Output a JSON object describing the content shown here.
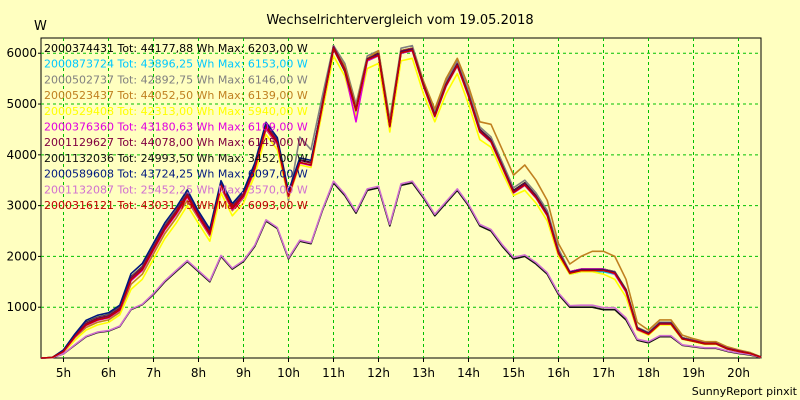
{
  "chart_data": {
    "type": "line",
    "title": "Wechselrichtervergleich vom 19.05.2018",
    "ylabel": "W",
    "footer": "SunnyReport pinxit",
    "xlim": [
      4.5,
      20.5
    ],
    "ylim": [
      0,
      6300
    ],
    "yticks": [
      1000,
      2000,
      3000,
      4000,
      5000,
      6000
    ],
    "xticks": [
      {
        "x": 5,
        "label": "5h"
      },
      {
        "x": 6,
        "label": "6h"
      },
      {
        "x": 7,
        "label": "7h"
      },
      {
        "x": 8,
        "label": "8h"
      },
      {
        "x": 9,
        "label": "9h"
      },
      {
        "x": 10,
        "label": "10h"
      },
      {
        "x": 11,
        "label": "11h"
      },
      {
        "x": 12,
        "label": "12h"
      },
      {
        "x": 13,
        "label": "13h"
      },
      {
        "x": 14,
        "label": "14h"
      },
      {
        "x": 15,
        "label": "15h"
      },
      {
        "x": 16,
        "label": "16h"
      },
      {
        "x": 17,
        "label": "17h"
      },
      {
        "x": 18,
        "label": "18h"
      },
      {
        "x": 19,
        "label": "19h"
      },
      {
        "x": 20,
        "label": "20h"
      }
    ],
    "grid": true,
    "legend_position": "top-left",
    "x": [
      4.5,
      4.75,
      5.0,
      5.25,
      5.5,
      5.75,
      6.0,
      6.25,
      6.5,
      6.75,
      7.0,
      7.25,
      7.5,
      7.75,
      8.0,
      8.25,
      8.5,
      8.75,
      9.0,
      9.25,
      9.5,
      9.75,
      10.0,
      10.25,
      10.5,
      10.75,
      11.0,
      11.25,
      11.5,
      11.75,
      12.0,
      12.25,
      12.5,
      12.75,
      13.0,
      13.25,
      13.5,
      13.75,
      14.0,
      14.25,
      14.5,
      14.75,
      15.0,
      15.25,
      15.5,
      15.75,
      16.0,
      16.25,
      16.5,
      16.75,
      17.0,
      17.25,
      17.5,
      17.75,
      18.0,
      18.25,
      18.5,
      18.75,
      19.0,
      19.25,
      19.5,
      19.75,
      20.0,
      20.25,
      20.5
    ],
    "series": [
      {
        "name": "2000374431 Tot: 44177,88 Wh Max: 6203,00 W",
        "color": "#000000",
        "values": [
          0,
          10,
          150,
          450,
          700,
          800,
          850,
          1000,
          1600,
          1800,
          2200,
          2600,
          2900,
          3250,
          2850,
          2500,
          3450,
          3000,
          3250,
          3800,
          4600,
          4300,
          3250,
          3900,
          3850,
          5000,
          6150,
          5700,
          4900,
          5900,
          6000,
          4600,
          6050,
          6100,
          5400,
          4800,
          5400,
          5800,
          5200,
          4500,
          4300,
          3800,
          3300,
          3450,
          3200,
          2850,
          2100,
          1700,
          1750,
          1750,
          1750,
          1700,
          1350,
          600,
          500,
          700,
          700,
          400,
          350,
          300,
          300,
          200,
          150,
          100,
          20
        ]
      },
      {
        "name": "2000873724 Tot: 43896,25 Wh Max: 6153,00 W",
        "color": "#00c8ff",
        "values": [
          0,
          10,
          130,
          420,
          660,
          760,
          810,
          960,
          1560,
          1760,
          2150,
          2560,
          2850,
          3200,
          2800,
          2450,
          3400,
          2950,
          3200,
          3750,
          4550,
          4250,
          3200,
          3850,
          3800,
          4950,
          6100,
          5650,
          4850,
          5850,
          5950,
          4550,
          6000,
          6050,
          5350,
          4750,
          5350,
          5750,
          5150,
          4450,
          4250,
          3750,
          3250,
          3400,
          3150,
          2800,
          2050,
          1650,
          1700,
          1700,
          1700,
          1650,
          1300,
          560,
          460,
          660,
          660,
          370,
          330,
          280,
          280,
          180,
          130,
          90,
          10
        ]
      },
      {
        "name": "2000502737 Tot: 42892,75 Wh Max: 6146,00 W",
        "color": "#808080",
        "values": [
          0,
          10,
          140,
          440,
          690,
          790,
          840,
          990,
          1590,
          1790,
          2190,
          2590,
          2890,
          3240,
          2840,
          2490,
          3440,
          2990,
          3240,
          3790,
          4590,
          4290,
          3100,
          4350,
          4100,
          5150,
          6150,
          5800,
          5000,
          5950,
          6050,
          4700,
          6100,
          6150,
          5450,
          4850,
          5450,
          5850,
          5250,
          4550,
          4350,
          3850,
          3350,
          3500,
          3250,
          2900,
          2150,
          1700,
          1750,
          1750,
          1750,
          1700,
          1350,
          600,
          500,
          700,
          700,
          400,
          350,
          300,
          300,
          200,
          150,
          100,
          20
        ]
      },
      {
        "name": "2000523437 Tot: 44052,50 Wh Max: 6139,00 W",
        "color": "#c08020",
        "values": [
          0,
          10,
          130,
          400,
          600,
          700,
          750,
          900,
          1450,
          1650,
          2050,
          2450,
          2750,
          3100,
          2750,
          2400,
          3350,
          2900,
          3150,
          3700,
          4500,
          4200,
          3200,
          3850,
          3800,
          5000,
          6100,
          5750,
          4950,
          5900,
          6050,
          4650,
          6050,
          6100,
          5450,
          4900,
          5500,
          5900,
          5350,
          4650,
          4600,
          4100,
          3600,
          3800,
          3500,
          3100,
          2250,
          1850,
          2000,
          2100,
          2100,
          2000,
          1550,
          700,
          550,
          750,
          750,
          450,
          380,
          320,
          320,
          220,
          160,
          110,
          20
        ]
      },
      {
        "name": "2000529408 Tot: 42313,00 Wh Max: 5940,00 W",
        "color": "#ffff00",
        "values": [
          0,
          10,
          100,
          350,
          550,
          650,
          700,
          850,
          1350,
          1550,
          1950,
          2350,
          2650,
          3000,
          2650,
          2300,
          3250,
          2800,
          3050,
          3600,
          4400,
          4100,
          3150,
          3800,
          3750,
          4850,
          5950,
          5550,
          4750,
          5700,
          5800,
          4450,
          5850,
          5900,
          5200,
          4650,
          5200,
          5600,
          5000,
          4300,
          4150,
          3650,
          3200,
          3300,
          3050,
          2700,
          2000,
          1650,
          1700,
          1700,
          1650,
          1550,
          1200,
          550,
          450,
          650,
          650,
          370,
          320,
          270,
          270,
          180,
          120,
          80,
          10
        ]
      },
      {
        "name": "2000376360 Tot: 43180,63 Wh Max: 6109,00 W",
        "color": "#e000e0",
        "values": [
          0,
          10,
          120,
          410,
          640,
          740,
          790,
          940,
          1520,
          1720,
          2120,
          2520,
          2820,
          3170,
          2770,
          2420,
          3370,
          2920,
          3170,
          3720,
          4520,
          4220,
          3180,
          3840,
          3790,
          4950,
          6080,
          5650,
          4650,
          5850,
          5950,
          4550,
          6000,
          6050,
          5350,
          4750,
          5350,
          5750,
          5150,
          4450,
          4250,
          3750,
          3250,
          3400,
          3150,
          2800,
          2050,
          1700,
          1750,
          1750,
          1750,
          1650,
          1300,
          560,
          470,
          670,
          670,
          380,
          340,
          290,
          290,
          190,
          140,
          90,
          15
        ]
      },
      {
        "name": "2001129627 Tot: 44078,00 Wh Max: 6145,00 W",
        "color": "#800040",
        "values": [
          0,
          10,
          140,
          440,
          680,
          780,
          830,
          980,
          1580,
          1780,
          2180,
          2580,
          2880,
          3230,
          2830,
          2480,
          3430,
          2980,
          3230,
          3780,
          4580,
          4280,
          3230,
          3890,
          3840,
          4990,
          6130,
          5690,
          4890,
          5890,
          5990,
          4590,
          6040,
          6090,
          5390,
          4790,
          5390,
          5790,
          5190,
          4490,
          4290,
          3790,
          3290,
          3440,
          3190,
          2840,
          2090,
          1690,
          1740,
          1740,
          1740,
          1690,
          1340,
          590,
          490,
          690,
          690,
          390,
          340,
          290,
          290,
          190,
          140,
          90,
          20
        ]
      },
      {
        "name": "2001132036 Tot: 24993,50 Wh Max: 3452,00 W",
        "color": "#101010",
        "values": [
          0,
          5,
          80,
          250,
          420,
          500,
          530,
          620,
          950,
          1050,
          1250,
          1500,
          1700,
          1900,
          1700,
          1500,
          2000,
          1750,
          1900,
          2200,
          2700,
          2550,
          1950,
          2300,
          2250,
          2900,
          3450,
          3200,
          2850,
          3300,
          3350,
          2600,
          3400,
          3450,
          3150,
          2800,
          3050,
          3300,
          3000,
          2600,
          2500,
          2200,
          1950,
          2000,
          1850,
          1650,
          1250,
          1000,
          1000,
          1000,
          950,
          950,
          750,
          350,
          300,
          420,
          420,
          250,
          220,
          190,
          190,
          130,
          90,
          60,
          10
        ]
      },
      {
        "name": "2000589608 Tot: 43724,25 Wh Max: 6097,00 W",
        "color": "#001880",
        "values": [
          0,
          10,
          160,
          470,
          740,
          840,
          890,
          1040,
          1660,
          1860,
          2260,
          2660,
          2960,
          3310,
          2890,
          2540,
          3490,
          3040,
          3290,
          3840,
          4640,
          4340,
          3280,
          3940,
          3890,
          4970,
          6090,
          5640,
          4880,
          5880,
          5970,
          4570,
          6020,
          6070,
          5370,
          4770,
          5370,
          5770,
          5170,
          4470,
          4270,
          3770,
          3270,
          3420,
          3170,
          2820,
          2070,
          1680,
          1730,
          1730,
          1730,
          1680,
          1330,
          580,
          480,
          680,
          680,
          380,
          330,
          280,
          280,
          180,
          130,
          90,
          15
        ]
      },
      {
        "name": "2001132087 Tot: 25452,25 Wh Max: 3570,00 W",
        "color": "#d070d0",
        "values": [
          0,
          5,
          85,
          260,
          430,
          510,
          540,
          630,
          960,
          1060,
          1270,
          1520,
          1720,
          1920,
          1720,
          1520,
          2020,
          1770,
          1920,
          2220,
          2720,
          2570,
          1970,
          2320,
          2270,
          2920,
          3480,
          3230,
          2880,
          3330,
          3380,
          2630,
          3430,
          3480,
          3180,
          2830,
          3080,
          3330,
          3030,
          2630,
          2530,
          2230,
          1980,
          2030,
          1880,
          1680,
          1280,
          1030,
          1040,
          1040,
          990,
          990,
          790,
          370,
          320,
          440,
          440,
          260,
          230,
          200,
          200,
          140,
          100,
          70,
          10
        ]
      },
      {
        "name": "2000316121 Tot: 43031,75 Wh Max: 6093,00 W",
        "color": "#c00000",
        "values": [
          0,
          10,
          130,
          420,
          650,
          750,
          800,
          950,
          1540,
          1740,
          2140,
          2540,
          2840,
          3190,
          2790,
          2440,
          3390,
          2940,
          3190,
          3740,
          4540,
          4240,
          3190,
          3850,
          3800,
          4960,
          6090,
          5660,
          4870,
          5870,
          5960,
          4560,
          6010,
          6060,
          5360,
          4760,
          5360,
          5760,
          5160,
          4460,
          4260,
          3760,
          3260,
          3410,
          3160,
          2810,
          2060,
          1670,
          1720,
          1720,
          1720,
          1670,
          1320,
          570,
          470,
          670,
          670,
          375,
          330,
          280,
          280,
          180,
          130,
          90,
          15
        ]
      }
    ]
  }
}
